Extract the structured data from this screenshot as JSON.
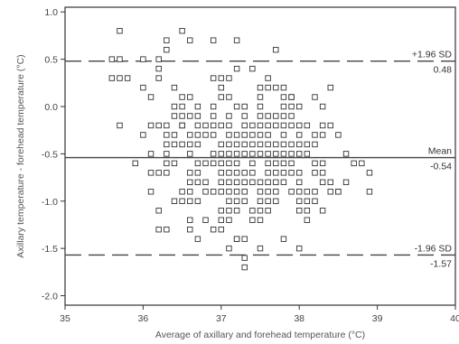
{
  "chart_data": {
    "type": "scatter",
    "title": "",
    "xlabel": "Average of axillary and forehead temperature (°C)",
    "ylabel": "Axillary temperature - forehead temperature (°C)",
    "xlim": [
      35,
      40
    ],
    "ylim": [
      -2.1,
      1.05
    ],
    "x_ticks": [
      35,
      36,
      37,
      38,
      39,
      40
    ],
    "y_ticks": [
      -2.0,
      -1.5,
      -1.0,
      -0.5,
      0.0,
      0.5,
      1.0
    ],
    "x_tick_labels": [
      "35",
      "36",
      "37",
      "38",
      "39",
      "40"
    ],
    "y_tick_labels": [
      "-2.0",
      "-1.5",
      "-1.0",
      "-0.5",
      "0.0",
      "0.5",
      "1.0"
    ],
    "grid": false,
    "marker": "open-square",
    "reference_lines": [
      {
        "kind": "upper-limit",
        "label": "+1.96 SD",
        "value_label": "0.48",
        "value": 0.48,
        "style": "dashed"
      },
      {
        "kind": "mean",
        "label": "Mean",
        "value_label": "-0.54",
        "value": -0.54,
        "style": "solid"
      },
      {
        "kind": "lower-limit",
        "label": "-1.96 SD",
        "value_label": "-1.57",
        "value": -1.57,
        "style": "dashed"
      }
    ],
    "points": [
      [
        35.7,
        0.8
      ],
      [
        35.6,
        0.3
      ],
      [
        35.7,
        0.3
      ],
      [
        35.8,
        0.3
      ],
      [
        35.7,
        0.5
      ],
      [
        35.6,
        0.5
      ],
      [
        35.7,
        -0.2
      ],
      [
        35.9,
        -0.6
      ],
      [
        36.0,
        -0.3
      ],
      [
        36.0,
        0.2
      ],
      [
        36.0,
        0.5
      ],
      [
        36.1,
        0.1
      ],
      [
        36.1,
        -0.2
      ],
      [
        36.1,
        -0.5
      ],
      [
        36.1,
        -0.7
      ],
      [
        36.1,
        -0.9
      ],
      [
        36.2,
        0.4
      ],
      [
        36.2,
        0.3
      ],
      [
        36.2,
        0.5
      ],
      [
        36.2,
        -1.1
      ],
      [
        36.2,
        -1.3
      ],
      [
        36.3,
        0.7
      ],
      [
        36.3,
        0.6
      ],
      [
        36.3,
        -0.4
      ],
      [
        36.3,
        -0.7
      ],
      [
        36.3,
        -1.3
      ],
      [
        36.4,
        0.2
      ],
      [
        36.4,
        -0.1
      ],
      [
        36.5,
        0.8
      ],
      [
        36.6,
        0.7
      ],
      [
        36.5,
        -0.2
      ],
      [
        36.6,
        -1.2
      ],
      [
        36.7,
        -1.0
      ],
      [
        36.7,
        -1.4
      ],
      [
        36.8,
        -0.8
      ],
      [
        36.9,
        0.7
      ],
      [
        36.9,
        -0.3
      ],
      [
        37.0,
        0.2
      ],
      [
        37.0,
        -1.3
      ],
      [
        37.1,
        -1.5
      ],
      [
        37.2,
        0.7
      ],
      [
        37.2,
        -1.4
      ],
      [
        37.3,
        -1.7
      ],
      [
        37.3,
        -1.6
      ],
      [
        37.4,
        0.4
      ],
      [
        37.5,
        -1.5
      ],
      [
        37.6,
        -0.1
      ],
      [
        37.7,
        0.6
      ],
      [
        37.9,
        0.1
      ],
      [
        38.0,
        -1.5
      ],
      [
        38.1,
        -1.2
      ],
      [
        38.2,
        -0.3
      ],
      [
        38.3,
        -1.1
      ],
      [
        38.4,
        0.2
      ],
      [
        38.5,
        -0.3
      ],
      [
        38.6,
        -0.5
      ],
      [
        38.6,
        -0.8
      ],
      [
        38.7,
        -0.6
      ],
      [
        38.9,
        -0.7
      ],
      [
        38.9,
        -0.9
      ],
      [
        38.8,
        -0.6
      ],
      [
        38.5,
        -0.9
      ],
      [
        38.4,
        -0.2
      ],
      [
        38.2,
        -0.9
      ]
    ],
    "dense_cloud": {
      "x_range": [
        36.0,
        38.6
      ],
      "y_range": [
        -1.4,
        0.5
      ]
    }
  }
}
